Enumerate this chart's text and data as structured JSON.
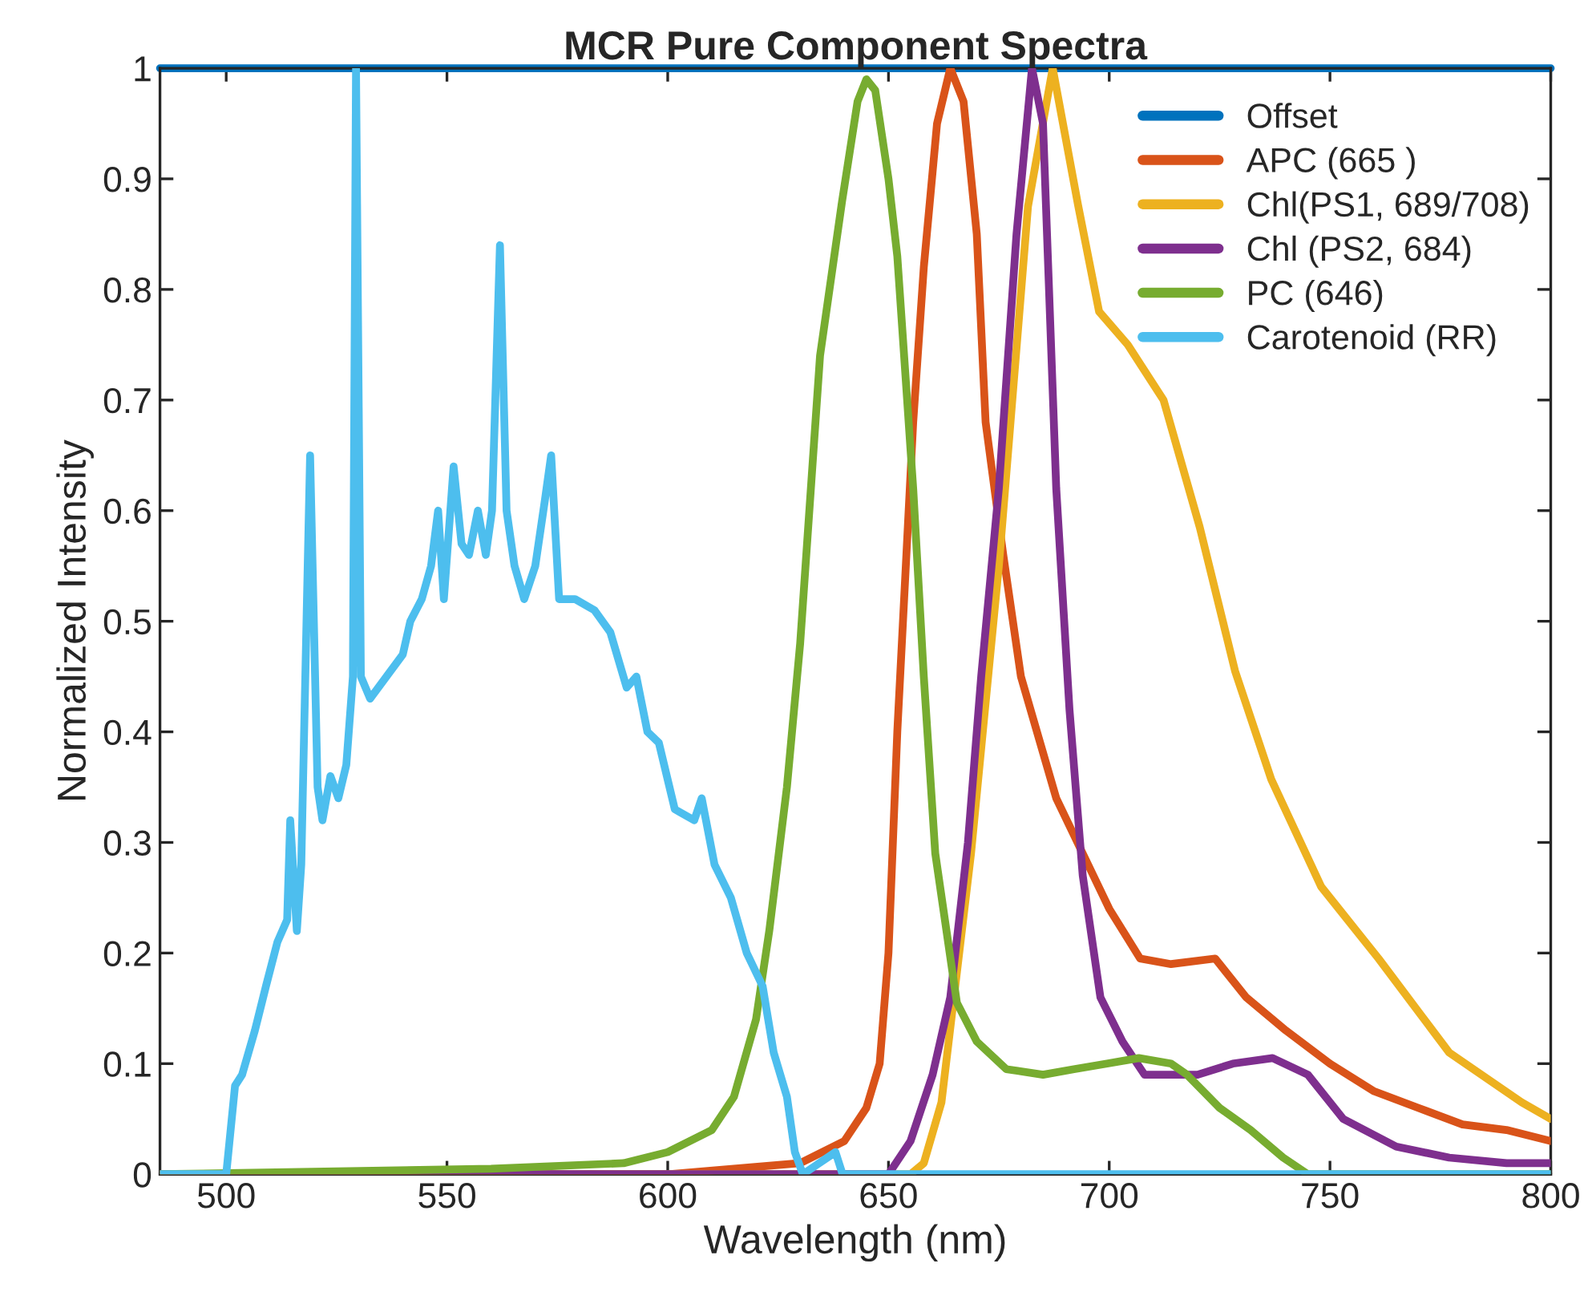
{
  "chart_data": {
    "type": "line",
    "title": "MCR Pure Component Spectra",
    "xlabel": "Wavelength (nm)",
    "ylabel": "Normalized Intensity",
    "xlim": [
      485,
      800
    ],
    "ylim": [
      0,
      1
    ],
    "xticks": [
      500,
      550,
      600,
      650,
      700,
      750,
      800
    ],
    "yticks": [
      0,
      0.1,
      0.2,
      0.3,
      0.4,
      0.5,
      0.6,
      0.7,
      0.8,
      0.9,
      1
    ],
    "grid": false,
    "legend": "top right",
    "line_style": "solid",
    "marker": "none",
    "series": [
      {
        "name": "Offset",
        "color": "#0072bd",
        "x": [
          485,
          800
        ],
        "values": [
          1,
          1
        ]
      },
      {
        "name": "APC (665 )",
        "color": "#d95319",
        "x": [
          485,
          600,
          630,
          640,
          645,
          648,
          650,
          652,
          655.6,
          658,
          661,
          664,
          667,
          670,
          672,
          676,
          680,
          688,
          694,
          700,
          707,
          714,
          724,
          731,
          740,
          750,
          760,
          770,
          780,
          790,
          800
        ],
        "values": [
          0,
          0,
          0.01,
          0.03,
          0.06,
          0.1,
          0.2,
          0.4,
          0.68,
          0.82,
          0.95,
          1,
          0.97,
          0.85,
          0.68,
          0.56,
          0.45,
          0.34,
          0.29,
          0.24,
          0.195,
          0.19,
          0.195,
          0.16,
          0.13,
          0.1,
          0.075,
          0.06,
          0.045,
          0.04,
          0.03
        ]
      },
      {
        "name": "Chl(PS1, 689/708)",
        "color": "#edb120",
        "x": [
          485,
          655,
          658,
          662,
          668.7,
          675,
          681.6,
          687.2,
          693,
          697.7,
          704.2,
          712.3,
          720.5,
          728.5,
          736.7,
          748,
          761,
          777,
          793.4,
          800
        ],
        "values": [
          0,
          0,
          0.01,
          0.065,
          0.29,
          0.55,
          0.875,
          1,
          0.875,
          0.78,
          0.75,
          0.7,
          0.585,
          0.455,
          0.357,
          0.26,
          0.195,
          0.11,
          0.065,
          0.05
        ]
      },
      {
        "name": "Chl (PS2, 684)",
        "color": "#7e2f8e",
        "x": [
          485,
          650,
          655,
          660,
          664,
          668,
          671,
          675,
          679,
          682.5,
          685,
          688,
          691,
          694,
          698,
          703,
          708,
          714,
          720,
          728,
          737,
          745,
          753,
          765,
          777,
          790,
          800
        ],
        "values": [
          0,
          0,
          0.03,
          0.09,
          0.16,
          0.3,
          0.45,
          0.62,
          0.85,
          1,
          0.95,
          0.62,
          0.42,
          0.27,
          0.16,
          0.12,
          0.09,
          0.09,
          0.09,
          0.1,
          0.105,
          0.09,
          0.05,
          0.025,
          0.015,
          0.01,
          0.01
        ]
      },
      {
        "name": "PC (646)",
        "color": "#77ac30",
        "x": [
          485,
          560,
          590,
          600,
          610,
          615,
          620,
          623,
          627,
          630,
          634.5,
          639.5,
          643,
          645,
          647,
          650,
          652,
          655.6,
          658,
          660.6,
          665.5,
          670,
          676.7,
          685,
          692,
          699.5,
          706.7,
          714,
          717.6,
          725,
          732,
          739.4,
          745,
          800
        ],
        "values": [
          0,
          0.005,
          0.01,
          0.02,
          0.04,
          0.07,
          0.14,
          0.22,
          0.35,
          0.48,
          0.74,
          0.88,
          0.97,
          0.99,
          0.98,
          0.9,
          0.83,
          0.62,
          0.45,
          0.29,
          0.155,
          0.12,
          0.095,
          0.09,
          0.095,
          0.1,
          0.105,
          0.1,
          0.09,
          0.06,
          0.04,
          0.015,
          0,
          0
        ]
      },
      {
        "name": "Carotenoid (RR)",
        "color": "#4dbeee",
        "x": [
          485,
          500,
          502,
          503.6,
          506.5,
          509,
          511.6,
          513.8,
          514.5,
          516,
          517,
          519,
          520.7,
          521.8,
          523.6,
          525.4,
          527.2,
          528.7,
          529.4,
          530.5,
          532.6,
          536.3,
          540,
          541.7,
          544.3,
          546.4,
          548,
          549.3,
          551.5,
          553.3,
          555,
          557,
          558.8,
          560.2,
          562,
          563.5,
          565.3,
          567.5,
          570,
          572.2,
          573.6,
          575.4,
          579,
          583.4,
          587,
          590.7,
          592.9,
          595.4,
          598,
          601.6,
          606,
          607.7,
          610.6,
          614.3,
          617.9,
          621.5,
          624,
          627,
          628.8,
          630.6,
          638,
          639.6,
          800
        ],
        "values": [
          0,
          0,
          0.08,
          0.09,
          0.13,
          0.17,
          0.21,
          0.23,
          0.32,
          0.22,
          0.28,
          0.65,
          0.35,
          0.32,
          0.36,
          0.34,
          0.37,
          0.45,
          1,
          0.45,
          0.43,
          0.45,
          0.47,
          0.5,
          0.52,
          0.55,
          0.6,
          0.52,
          0.64,
          0.57,
          0.56,
          0.6,
          0.56,
          0.6,
          0.84,
          0.6,
          0.55,
          0.52,
          0.55,
          0.61,
          0.65,
          0.52,
          0.52,
          0.51,
          0.49,
          0.44,
          0.45,
          0.4,
          0.39,
          0.33,
          0.32,
          0.34,
          0.28,
          0.25,
          0.2,
          0.17,
          0.11,
          0.07,
          0.02,
          0,
          0.02,
          0,
          0
        ]
      }
    ]
  }
}
